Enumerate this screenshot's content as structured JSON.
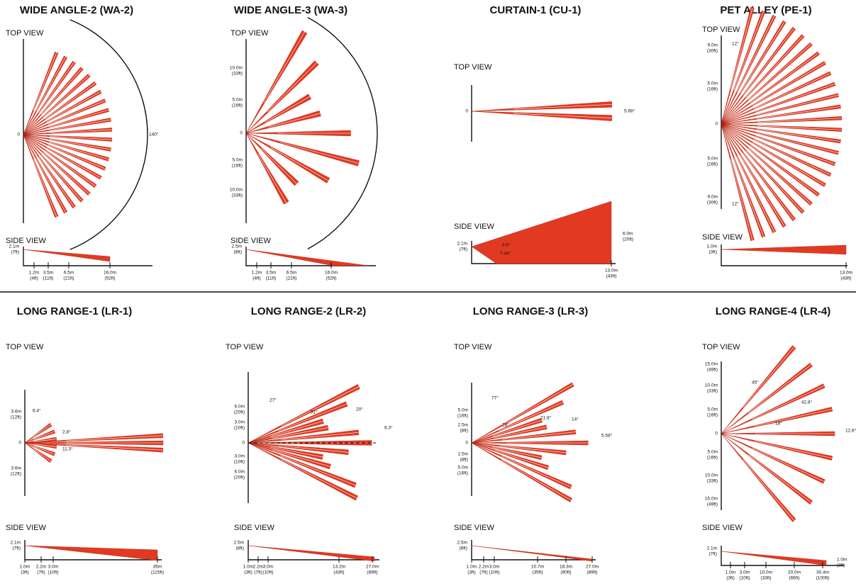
{
  "panels": [
    {
      "title": "WIDE ANGLE-2 (WA-2)",
      "top_view": "TOP VIEW",
      "axis_labels": [
        {
          "m": "0"
        }
      ],
      "angle_labels": [
        "140°"
      ],
      "side_view": "SIDE VIEW",
      "side": {
        "left": {
          "m": "2.1m",
          "ft": "(7ft)"
        },
        "bottom": [
          {
            "m": "1.2m",
            "ft": "(4ft)"
          },
          {
            "m": "3.5m",
            "ft": "(11ft)"
          },
          {
            "m": "6.5m",
            "ft": "(21ft)"
          },
          {
            "m": "16.0m",
            "ft": "(52ft)"
          }
        ]
      }
    },
    {
      "title": "WIDE ANGLE-3 (WA-3)",
      "top_view": "TOP VIEW",
      "axis_labels": [
        {
          "m": "10.0m",
          "ft": "(33ft)"
        },
        {
          "m": "5.0m",
          "ft": "(16ft)"
        },
        {
          "m": "0"
        },
        {
          "m": "5.0m",
          "ft": "(16ft)"
        },
        {
          "m": "10.0m",
          "ft": "(33ft)"
        }
      ],
      "angle_labels": [],
      "side_view": "SIDE VIEW",
      "side": {
        "left": {
          "m": "2.5m",
          "ft": "(8ft)"
        },
        "bottom": [
          {
            "m": "1.2m",
            "ft": "(4ft)"
          },
          {
            "m": "3.5m",
            "ft": "(11ft)"
          },
          {
            "m": "6.5m",
            "ft": "(21ft)"
          },
          {
            "m": "16.0m",
            "ft": "(52ft)"
          }
        ]
      }
    },
    {
      "title": "CURTAIN-1 (CU-1)",
      "top_view": "TOP VIEW",
      "axis_labels": [
        {
          "m": "0"
        }
      ],
      "angle_labels": [
        "5.68°"
      ],
      "side_view": "SIDE VIEW",
      "side": {
        "left": {
          "m": "2.1m",
          "ft": "(7ft)"
        },
        "angle_labels": [
          "3.6°",
          "7.44°"
        ],
        "right": {
          "m": "6.0m",
          "ft": "(20ft)"
        },
        "bottom": [
          {
            "m": "13.0m",
            "ft": "(43ft)"
          }
        ]
      }
    },
    {
      "title": "PET ALLEY (PE-1)",
      "top_view": "TOP VIEW",
      "axis_labels": [
        {
          "m": "9.0m",
          "ft": "(30ft)"
        },
        {
          "m": "5.0m",
          "ft": "(16ft)"
        },
        {
          "m": "0"
        },
        {
          "m": "5.0m",
          "ft": "(16ft)"
        },
        {
          "m": "9.0m",
          "ft": "(30ft)"
        }
      ],
      "angle_labels": [
        "12°",
        "12°"
      ],
      "side_view": "SIDE VIEW",
      "side": {
        "left": {
          "m": "1.0m",
          "ft": "(3ft)"
        },
        "bottom": [
          {
            "m": "13.0m",
            "ft": "(43ft)"
          }
        ]
      }
    },
    {
      "title": "LONG RANGE-1 (LR-1)",
      "top_view": "TOP VIEW",
      "axis_labels": [
        {
          "m": "3.6m",
          "ft": "(12ft)"
        },
        {
          "m": "0"
        },
        {
          "m": "3.6m",
          "ft": "(12ft)"
        }
      ],
      "angle_labels": [
        "6.4°",
        "2.8°",
        "11.3°"
      ],
      "side_view": "SIDE VIEW",
      "side": {
        "left": {
          "m": "2.1m",
          "ft": "(7ft)"
        },
        "bottom": [
          {
            "m": "1.0m",
            "ft": "(3ft)"
          },
          {
            "m": "2.2m",
            "ft": "(7ft)"
          },
          {
            "m": "3.0m",
            "ft": "(10ft)"
          },
          {
            "m": "35m",
            "ft": "(115ft)"
          }
        ]
      }
    },
    {
      "title": "LONG RANGE-2 (LR-2)",
      "top_view": "TOP VIEW",
      "axis_labels": [
        {
          "m": "6.0m",
          "ft": "(20ft)"
        },
        {
          "m": "3.0m",
          "ft": "(10ft)"
        },
        {
          "m": "0"
        },
        {
          "m": "3.0m",
          "ft": "(10ft)"
        },
        {
          "m": "6.0m",
          "ft": "(20ft)"
        }
      ],
      "angle_labels": [
        "27°",
        "31°",
        "20°",
        "6.3°"
      ],
      "side_view": "SIDE VIEW",
      "side": {
        "left": {
          "m": "2.5m",
          "ft": "(8ft)"
        },
        "bottom": [
          {
            "m": "1.0m",
            "ft": "(3ft)"
          },
          {
            "m": "2.2m",
            "ft": "(7ft)"
          },
          {
            "m": "3.0m",
            "ft": "(10ft)"
          },
          {
            "m": "13.2m",
            "ft": "(43ft)"
          },
          {
            "m": "27.0m",
            "ft": "(89ft)"
          }
        ]
      }
    },
    {
      "title": "LONG RANGE-3 (LR-3)",
      "top_view": "TOP VIEW",
      "axis_labels": [
        {
          "m": "5.0m",
          "ft": "(16ft)"
        },
        {
          "m": "2.5m",
          "ft": "(8ft)"
        },
        {
          "m": "0"
        },
        {
          "m": "2.5m",
          "ft": "(8ft)"
        },
        {
          "m": "5.0m",
          "ft": "(16ft)"
        }
      ],
      "angle_labels": [
        "77°",
        "28°",
        "21.8°",
        "14°",
        "5.58°"
      ],
      "side_view": "SIDE VIEW",
      "side": {
        "left": {
          "m": "2.5m",
          "ft": "(8ft)"
        },
        "bottom": [
          {
            "m": "1.0m",
            "ft": "(3ft)"
          },
          {
            "m": "2.2m",
            "ft": "(7ft)"
          },
          {
            "m": "3.0m",
            "ft": "(10ft)"
          },
          {
            "m": "10.7m",
            "ft": "(35ft)"
          },
          {
            "m": "18.3m",
            "ft": "(60ft)"
          },
          {
            "m": "27.0m",
            "ft": "(89ft)"
          }
        ]
      }
    },
    {
      "title": "LONG RANGE-4 (LR-4)",
      "top_view": "TOP VIEW",
      "axis_labels": [
        {
          "m": "15.0m",
          "ft": "(49ft)"
        },
        {
          "m": "10.0m",
          "ft": "(33ft)"
        },
        {
          "m": "5.0m",
          "ft": "(16ft)"
        },
        {
          "m": "0"
        },
        {
          "m": "5.0m",
          "ft": "(16ft)"
        },
        {
          "m": "10.0m",
          "ft": "(33ft)"
        },
        {
          "m": "15.0m",
          "ft": "(49ft)"
        }
      ],
      "angle_labels": [
        "45°",
        "42.8°",
        "18°",
        "12.8°"
      ],
      "side_view": "SIDE VIEW",
      "side": {
        "left": {
          "m": "2.1m",
          "ft": "(7ft)"
        },
        "right": {
          "m": "1.0m",
          "ft": "(3ft)"
        },
        "bottom": [
          {
            "m": "1.0m",
            "ft": "(3ft)"
          },
          {
            "m": "3.0m",
            "ft": "(10ft)"
          },
          {
            "m": "10.0m",
            "ft": "(33ft)"
          },
          {
            "m": "20.0m",
            "ft": "(66ft)"
          },
          {
            "m": "30.4m",
            "ft": "(100ft)"
          }
        ]
      }
    }
  ]
}
